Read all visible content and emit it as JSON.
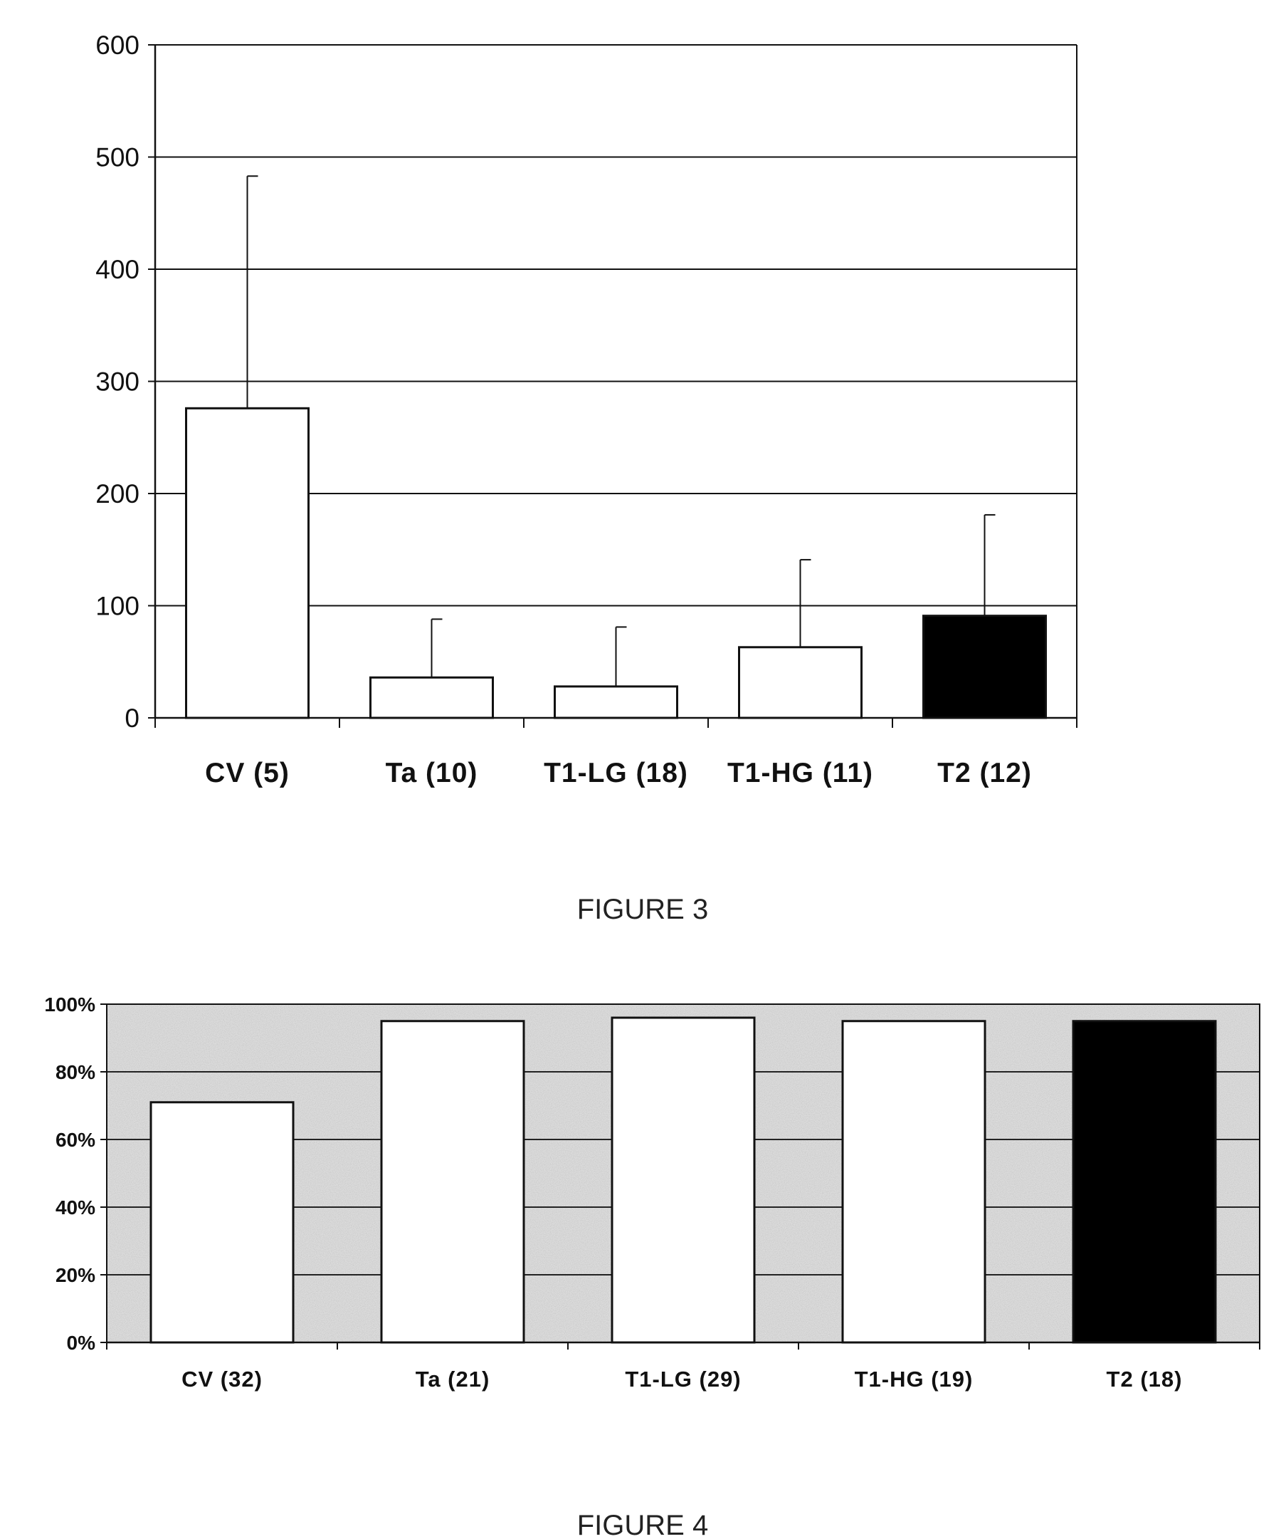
{
  "chart_data": [
    {
      "type": "bar",
      "caption": "FIGURE 3",
      "categories": [
        "CV (5)",
        "Ta (10)",
        "T1-LG (18)",
        "T1-HG (11)",
        "T2 (12)"
      ],
      "values": [
        276,
        36,
        28,
        63,
        91
      ],
      "error_upper": [
        483,
        88,
        81,
        141,
        181
      ],
      "bar_colors": [
        "#ffffff",
        "#ffffff",
        "#ffffff",
        "#ffffff",
        "#000000"
      ],
      "ylim": [
        0,
        600
      ],
      "yticks": [
        "0",
        "100",
        "200",
        "300",
        "400",
        "500",
        "600"
      ],
      "grid": true
    },
    {
      "type": "bar",
      "caption": "FIGURE 4",
      "categories": [
        "CV (32)",
        "Ta (21)",
        "T1-LG (29)",
        "T1-HG (19)",
        "T2 (18)"
      ],
      "values": [
        71,
        95,
        96,
        95,
        95
      ],
      "bar_colors": [
        "#ffffff",
        "#ffffff",
        "#ffffff",
        "#ffffff",
        "#000000"
      ],
      "ylim": [
        0,
        100
      ],
      "yticks": [
        "0%",
        "20%",
        "40%",
        "60%",
        "80%",
        "100%"
      ],
      "grid": true,
      "plot_background": "stippled gray"
    }
  ]
}
